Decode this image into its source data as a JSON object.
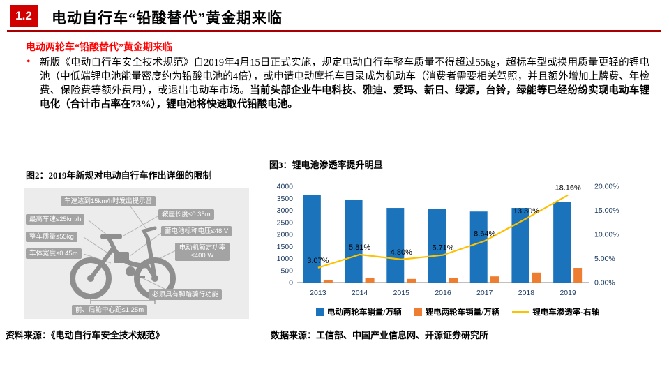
{
  "header": {
    "section_number": "1.2",
    "title": "电动自行车“铅酸替代”黄金期来临"
  },
  "body": {
    "bullet": "•",
    "subtitle": "电动两轮车“铅酸替代”黄金期来临",
    "paragraph_normal": "新版《电动自行车安全技术规范》自2019年4月15日正式实施，规定电动自行车整车质量不得超过55kg，超标车型或换用质量更轻的锂电池（中低端锂电池能量密度约为铅酸电池的4倍），或申请电动摩托车目录成为机动车（消费者需要相关驾照，并且额外增加上牌费、年检费、保险费等额外费用），或退出电动车市场。",
    "paragraph_bold": "当前头部企业牛电科技、雅迪、爱玛、新日、绿源，台铃，绿能等已经纷纷实现电动车锂电化（合计市占率在73%），锂电池将快速取代铅酸电池。"
  },
  "figure2": {
    "title": "图2：2019年新规对电动自行车作出详细的限制",
    "labels": [
      "车速达到15km/h时发出提示音",
      "最高车速≤25km/h",
      "整车质量≤55kg",
      "车体宽度≤0.45m",
      "鞍座长度≤0.35m",
      "蓄电池标称电压≤48 V",
      "电动机额定功率≤400 W",
      "必须具有脚踏骑行功能",
      "前、后轮中心距≤1.25m"
    ],
    "source": "资料来源：《电动自行车安全技术规范》"
  },
  "figure3": {
    "title": "图3：锂电池渗透率提升明显",
    "source": "数据来源：工信部、中国产业信息网、开源证券研究所"
  },
  "chart_data": {
    "type": "combo-bar-line",
    "title": "锂电池渗透率提升明显",
    "categories": [
      "2013",
      "2014",
      "2015",
      "2016",
      "2017",
      "2018",
      "2019"
    ],
    "series": [
      {
        "name": "电动两轮车销量/万辆",
        "kind": "bar",
        "axis": "left",
        "color": "#1b74bb",
        "values": [
          3650,
          3450,
          3100,
          3050,
          2950,
          3100,
          3350
        ]
      },
      {
        "name": "锂电两轮车销量/万辆",
        "kind": "bar",
        "axis": "left",
        "color": "#ed7d31",
        "values": [
          112,
          200,
          150,
          174,
          255,
          412,
          608
        ]
      },
      {
        "name": "锂电车渗透率-右轴",
        "kind": "line",
        "axis": "right",
        "color": "#ffc000",
        "values": [
          3.07,
          5.81,
          4.8,
          5.71,
          8.64,
          13.3,
          18.16
        ],
        "point_labels": [
          "3.07%",
          "5.81%",
          "4.80%",
          "5.71%",
          "8.64%",
          "13.30%",
          "18.16%"
        ]
      }
    ],
    "left_axis": {
      "min": 0,
      "max": 4000,
      "step": 500
    },
    "right_axis": {
      "min": 0,
      "max": 20,
      "step": 5,
      "suffix": "%"
    },
    "legend_position": "bottom",
    "gridlines": false
  },
  "colors": {
    "accent_red": "#d10000",
    "rule_red": "#a80000",
    "text_red": "#ff0000",
    "bar_blue": "#1b74bb",
    "bar_orange": "#ed7d31",
    "line_yellow": "#ffc000",
    "callout_gray": "#a3a3a3"
  }
}
